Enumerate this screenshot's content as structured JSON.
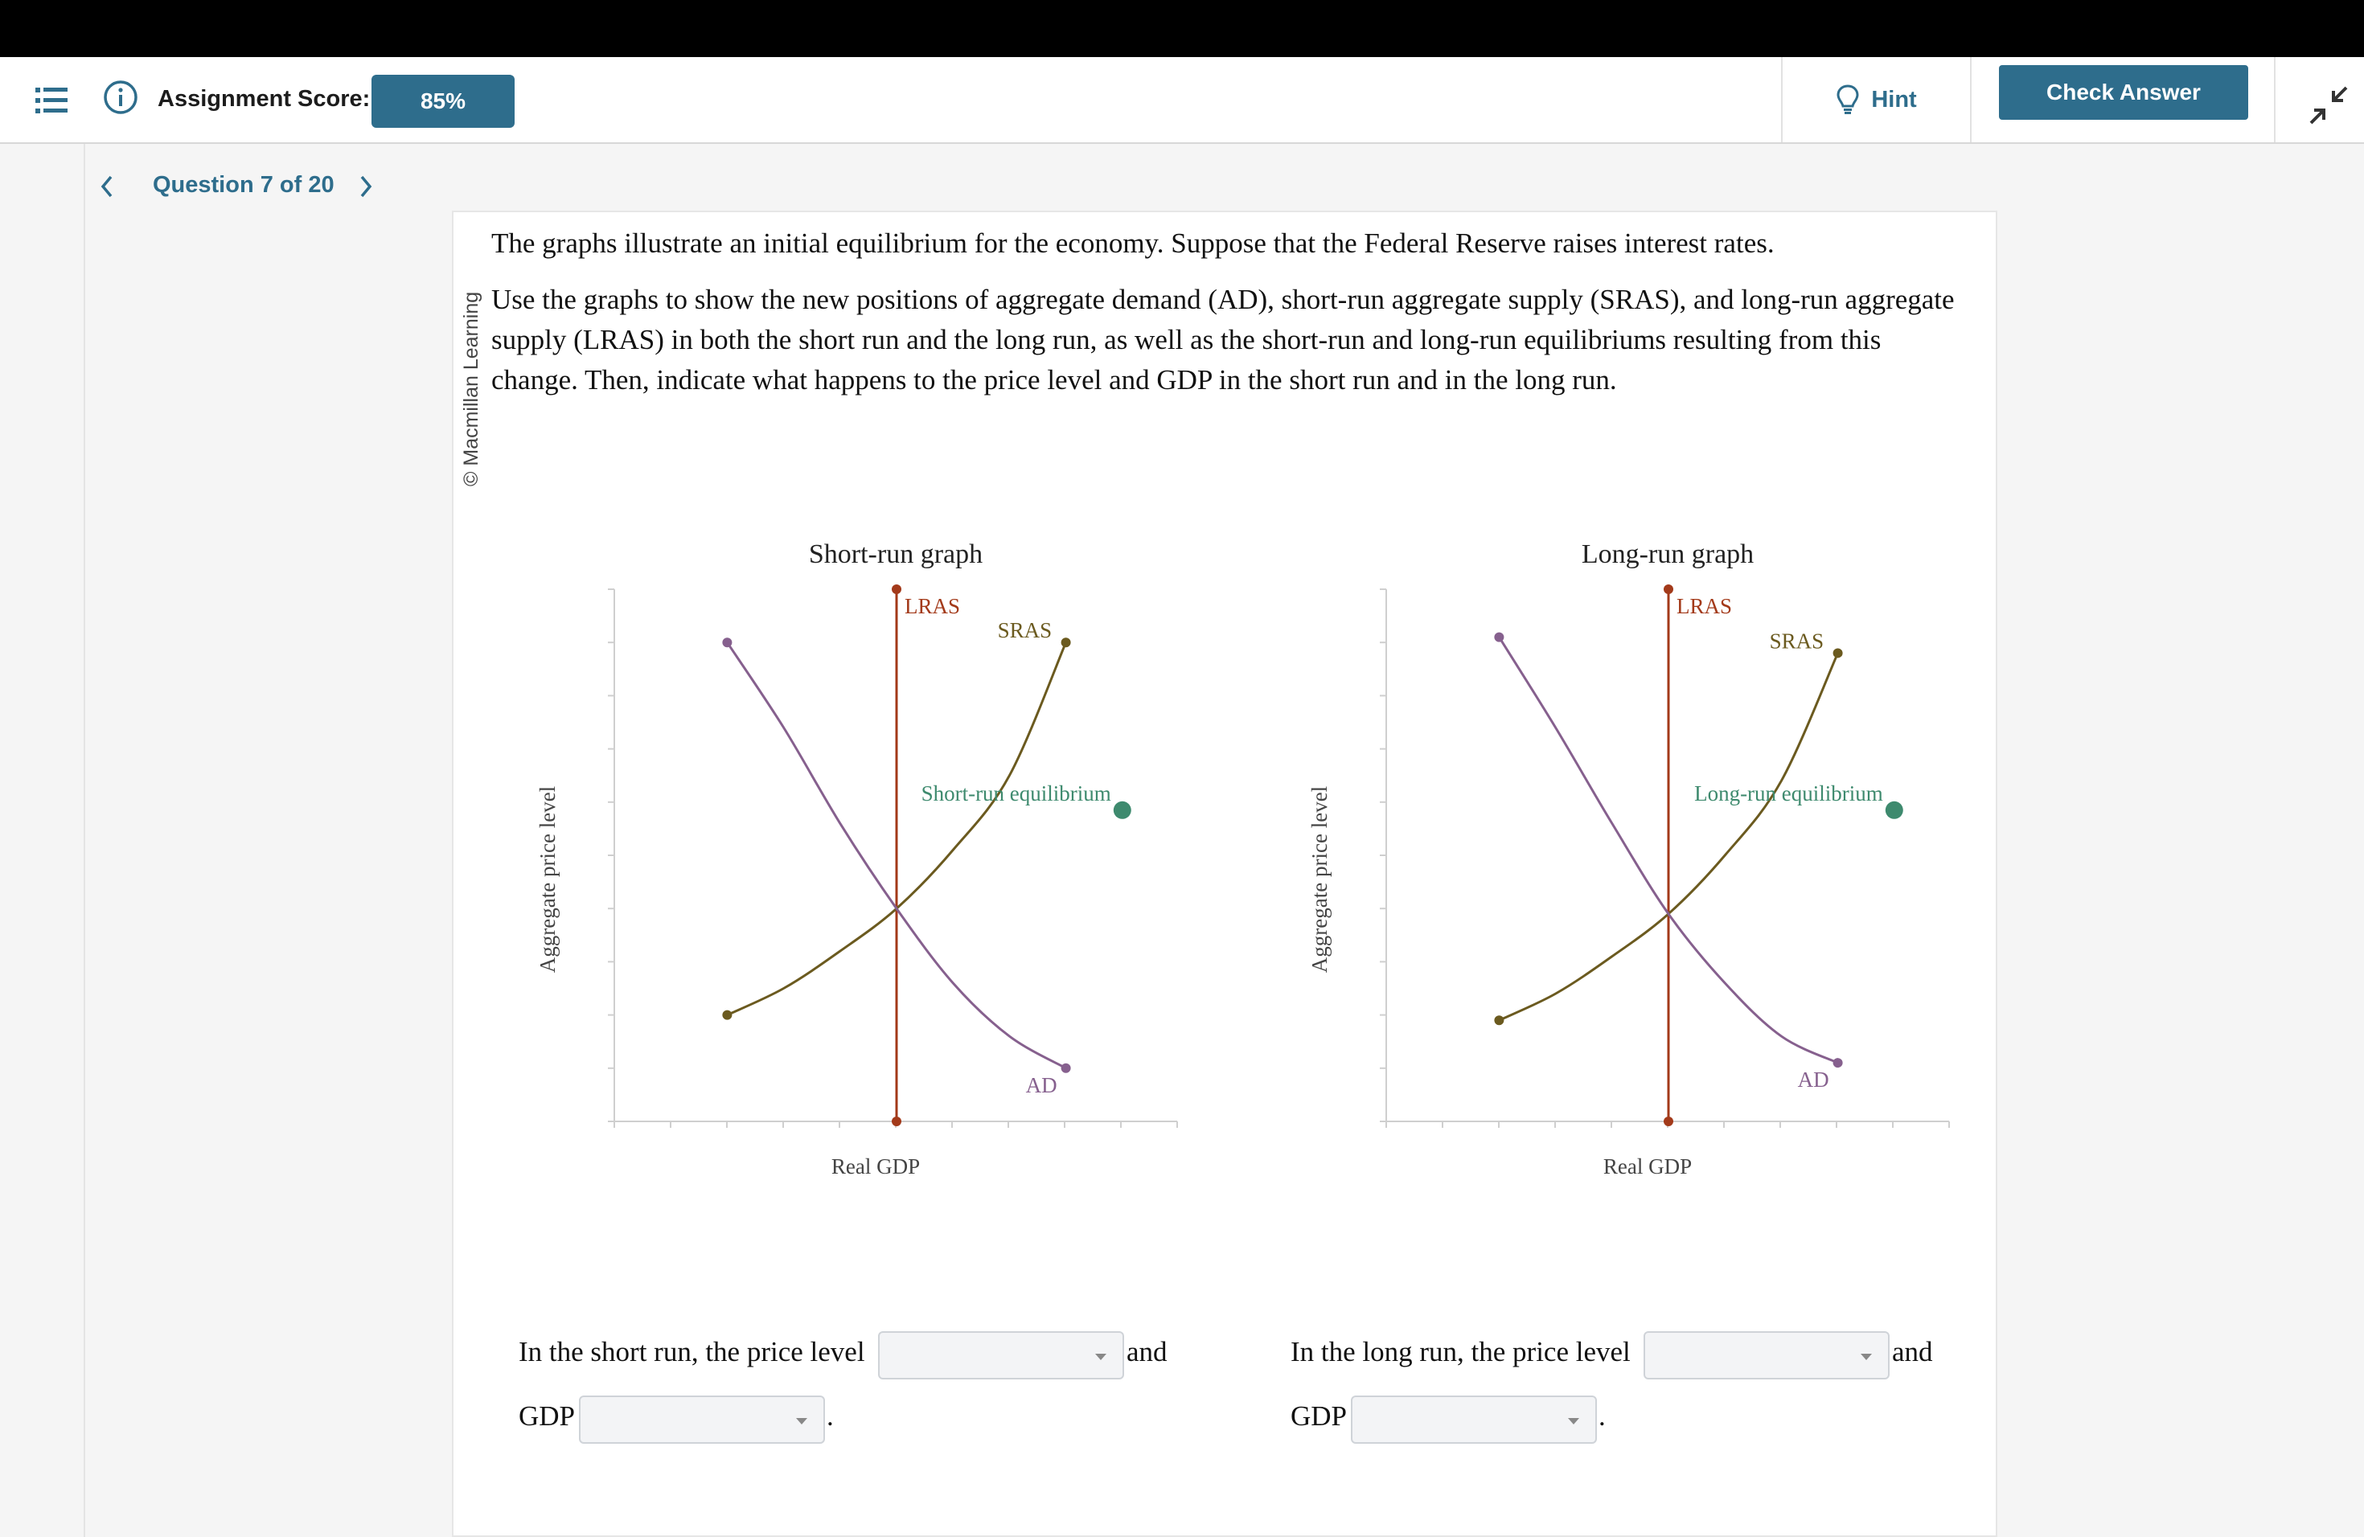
{
  "header": {
    "score_label": "Assignment Score:",
    "score_value": "85%",
    "hint_label": "Hint",
    "check_label": "Check Answer"
  },
  "nav": {
    "question_label": "Question 7 of 20"
  },
  "copyright": "© Macmillan Learning",
  "prompt": {
    "p1": "The graphs illustrate an initial equilibrium for the economy. Suppose that the Federal Reserve raises interest rates.",
    "p2": "Use the graphs to show the new positions of aggregate demand (AD), short-run aggregate supply (SRAS), and long-run aggregate supply (LRAS) in both the short run and the long run, as well as the short-run and long-run equilibriums resulting from this change. Then, indicate what happens to the price level and GDP in the short run and in the long run."
  },
  "colors": {
    "lras": "#a33a1a",
    "sras": "#6b5a1f",
    "ad": "#86608e",
    "equilibrium": "#3e8a6e"
  },
  "chart_data": [
    {
      "type": "line",
      "title": "Short-run graph",
      "xlabel": "Real GDP",
      "ylabel": "Aggregate price level",
      "xlim": [
        0,
        10
      ],
      "ylim": [
        0,
        10
      ],
      "series": [
        {
          "name": "LRAS",
          "points": [
            [
              5,
              10
            ],
            [
              5,
              0
            ]
          ]
        },
        {
          "name": "SRAS",
          "points": [
            [
              2,
              2
            ],
            [
              3,
              2.5
            ],
            [
              4,
              3.2
            ],
            [
              5,
              4
            ],
            [
              6,
              5.1
            ],
            [
              7,
              6.5
            ],
            [
              8,
              9
            ]
          ]
        },
        {
          "name": "AD",
          "points": [
            [
              2,
              9
            ],
            [
              3,
              7.4
            ],
            [
              4,
              5.6
            ],
            [
              5,
              4
            ],
            [
              6,
              2.6
            ],
            [
              7,
              1.6
            ],
            [
              8,
              1
            ]
          ]
        }
      ],
      "marker": {
        "label": "Short-run equilibrium",
        "x": 9,
        "y": 6
      }
    },
    {
      "type": "line",
      "title": "Long-run graph",
      "xlabel": "Real GDP",
      "ylabel": "Aggregate price level",
      "xlim": [
        0,
        10
      ],
      "ylim": [
        0,
        10
      ],
      "series": [
        {
          "name": "LRAS",
          "points": [
            [
              5,
              10
            ],
            [
              5,
              0
            ]
          ]
        },
        {
          "name": "SRAS",
          "points": [
            [
              2,
              1.9
            ],
            [
              3,
              2.4
            ],
            [
              4,
              3.1
            ],
            [
              5,
              3.9
            ],
            [
              6,
              5.0
            ],
            [
              7,
              6.4
            ],
            [
              8,
              8.8
            ]
          ]
        },
        {
          "name": "AD",
          "points": [
            [
              2,
              9.1
            ],
            [
              3,
              7.4
            ],
            [
              4,
              5.6
            ],
            [
              5,
              3.9
            ],
            [
              6,
              2.6
            ],
            [
              7,
              1.6
            ],
            [
              8,
              1.1
            ]
          ]
        }
      ],
      "marker": {
        "label": "Long-run equilibrium",
        "x": 9,
        "y": 6
      }
    }
  ],
  "answers": {
    "short_prefix": "In the short run, the price level",
    "long_prefix": "In the long run, the price level",
    "and": "and",
    "gdp": "GDP",
    "period": "."
  }
}
